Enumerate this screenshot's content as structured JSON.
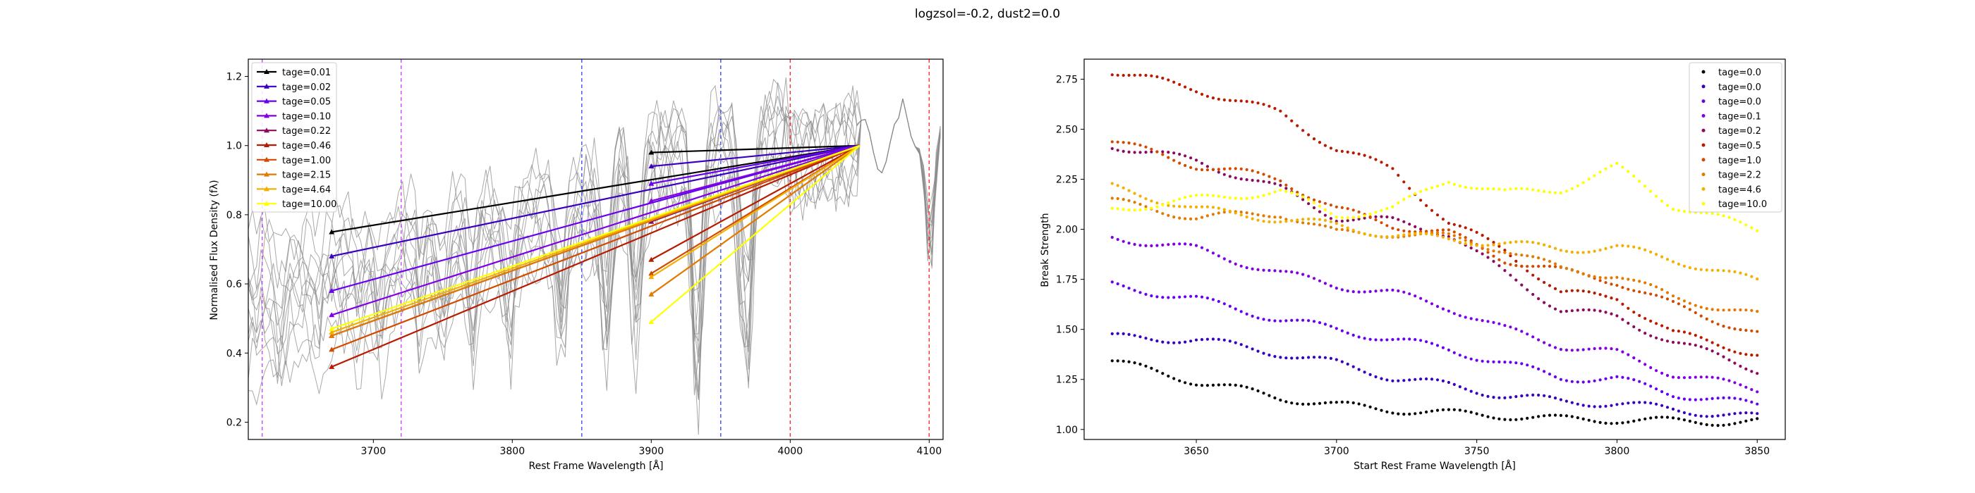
{
  "figure": {
    "suptitle": "logzsol=-0.2, dust2=0.0"
  },
  "colors": {
    "bg": "#ffffff",
    "axis": "#000000",
    "spectra": "#8c8c8c",
    "vline_blue": "#3b4cff",
    "vline_red": "#ff3030",
    "vline_violet": "#cc44ff",
    "series": [
      "#000000",
      "#3a00c0",
      "#6a00f0",
      "#8000e6",
      "#8b0a60",
      "#b81a00",
      "#d24a00",
      "#e27a00",
      "#f2b000",
      "#ffff00"
    ]
  },
  "chart_data": [
    {
      "type": "line",
      "title": "",
      "xlabel": "Rest Frame Wavelength [Å]",
      "ylabel": "Normalised Flux Density (fλ)",
      "xlim": [
        3610,
        4110
      ],
      "ylim": [
        0.15,
        1.25
      ],
      "xticks": [
        3700,
        3800,
        3900,
        4000,
        4100
      ],
      "yticks": [
        0.2,
        0.4,
        0.6,
        0.8,
        1.0,
        1.2
      ],
      "grid": false,
      "legend_position": "top-left",
      "vertical_lines": [
        {
          "x": 3620,
          "color": "violet"
        },
        {
          "x": 3720,
          "color": "violet"
        },
        {
          "x": 3850,
          "color": "blue"
        },
        {
          "x": 3950,
          "color": "blue"
        },
        {
          "x": 4000,
          "color": "red"
        },
        {
          "x": 4100,
          "color": "red"
        }
      ],
      "anchor": {
        "x": 4050,
        "y": 1.0
      },
      "series": [
        {
          "name": "tage=0.01",
          "x_left": 3670,
          "y_left": 0.75,
          "x_mid": 3900,
          "y_mid": 0.98
        },
        {
          "name": "tage=0.02",
          "x_left": 3670,
          "y_left": 0.68,
          "x_mid": 3900,
          "y_mid": 0.94
        },
        {
          "name": "tage=0.05",
          "x_left": 3670,
          "y_left": 0.58,
          "x_mid": 3900,
          "y_mid": 0.89
        },
        {
          "name": "tage=0.10",
          "x_left": 3670,
          "y_left": 0.51,
          "x_mid": 3900,
          "y_mid": 0.84
        },
        {
          "name": "tage=0.22",
          "x_left": 3670,
          "y_left": 0.45,
          "x_mid": 3900,
          "y_mid": 0.78
        },
        {
          "name": "tage=0.46",
          "x_left": 3670,
          "y_left": 0.36,
          "x_mid": 3900,
          "y_mid": 0.67
        },
        {
          "name": "tage=1.00",
          "x_left": 3670,
          "y_left": 0.41,
          "x_mid": 3900,
          "y_mid": 0.63
        },
        {
          "name": "tage=2.15",
          "x_left": 3670,
          "y_left": 0.45,
          "x_mid": 3900,
          "y_mid": 0.57
        },
        {
          "name": "tage=4.64",
          "x_left": 3670,
          "y_left": 0.46,
          "x_mid": 3900,
          "y_mid": 0.62
        },
        {
          "name": "tage=10.00",
          "x_left": 3670,
          "y_left": 0.47,
          "x_mid": 3900,
          "y_mid": 0.49
        }
      ]
    },
    {
      "type": "scatter",
      "title": "",
      "xlabel": "Start Rest Frame Wavelength [Å]",
      "ylabel": "Break Strength",
      "xlim": [
        3610,
        3860
      ],
      "ylim": [
        0.95,
        2.85
      ],
      "xticks": [
        3650,
        3700,
        3750,
        3800,
        3850
      ],
      "yticks": [
        1.0,
        1.25,
        1.5,
        1.75,
        2.0,
        2.25,
        2.5,
        2.75
      ],
      "grid": false,
      "legend_position": "top-right",
      "x_range_of_points": [
        3620,
        3850
      ],
      "series": [
        {
          "name": "tage=0.0",
          "x": [
            3620,
            3650,
            3680,
            3700,
            3720,
            3740,
            3760,
            3780,
            3800,
            3820,
            3850
          ],
          "y": [
            1.34,
            1.24,
            1.16,
            1.12,
            1.1,
            1.08,
            1.07,
            1.05,
            1.05,
            1.04,
            1.04
          ]
        },
        {
          "name": "tage=0.0",
          "x": [
            3620,
            3650,
            3680,
            3700,
            3720,
            3740,
            3760,
            3780,
            3800,
            3820,
            3850
          ],
          "y": [
            1.46,
            1.45,
            1.38,
            1.33,
            1.26,
            1.22,
            1.17,
            1.14,
            1.13,
            1.1,
            1.06
          ]
        },
        {
          "name": "tage=0.0",
          "x": [
            3620,
            3650,
            3680,
            3700,
            3720,
            3740,
            3760,
            3780,
            3800,
            3820,
            3850
          ],
          "y": [
            1.72,
            1.65,
            1.55,
            1.5,
            1.45,
            1.4,
            1.33,
            1.26,
            1.25,
            1.18,
            1.12
          ]
        },
        {
          "name": "tage=0.1",
          "x": [
            3620,
            3650,
            3680,
            3700,
            3720,
            3740,
            3760,
            3780,
            3800,
            3820,
            3850
          ],
          "y": [
            1.96,
            1.9,
            1.78,
            1.72,
            1.68,
            1.61,
            1.5,
            1.42,
            1.38,
            1.28,
            1.2
          ]
        },
        {
          "name": "tage=0.2",
          "x": [
            3620,
            3650,
            3680,
            3700,
            3720,
            3740,
            3760,
            3780,
            3800,
            3820,
            3850
          ],
          "y": [
            2.42,
            2.34,
            2.2,
            2.06,
            2.04,
            1.98,
            1.78,
            1.6,
            1.56,
            1.44,
            1.3
          ]
        },
        {
          "name": "tage=0.5",
          "x": [
            3620,
            3650,
            3680,
            3700,
            3720,
            3740,
            3760,
            3780,
            3800,
            3820,
            3850
          ],
          "y": [
            2.79,
            2.7,
            2.58,
            2.4,
            2.3,
            2.03,
            1.9,
            1.68,
            1.66,
            1.48,
            1.38
          ]
        },
        {
          "name": "tage=1.0",
          "x": [
            3620,
            3650,
            3680,
            3700,
            3720,
            3740,
            3760,
            3780,
            3800,
            3820,
            3850
          ],
          "y": [
            2.44,
            2.32,
            2.25,
            2.1,
            2.02,
            1.98,
            1.85,
            1.79,
            1.74,
            1.62,
            1.48
          ]
        },
        {
          "name": "tage=2.2",
          "x": [
            3620,
            3650,
            3680,
            3700,
            3720,
            3740,
            3760,
            3780,
            3800,
            3820,
            3850
          ],
          "y": [
            2.14,
            2.06,
            2.08,
            1.98,
            1.98,
            1.96,
            1.9,
            1.8,
            1.77,
            1.66,
            1.57
          ]
        },
        {
          "name": "tage=4.6",
          "x": [
            3620,
            3650,
            3680,
            3700,
            3720,
            3740,
            3760,
            3780,
            3800,
            3820,
            3850
          ],
          "y": [
            2.21,
            2.1,
            2.05,
            2.02,
            1.97,
            1.95,
            1.93,
            1.9,
            1.91,
            1.85,
            1.74
          ]
        },
        {
          "name": "tage=10.0",
          "x": [
            3620,
            3650,
            3680,
            3700,
            3720,
            3740,
            3760,
            3780,
            3800,
            3820,
            3850
          ],
          "y": [
            2.1,
            2.15,
            2.19,
            2.07,
            2.1,
            2.25,
            2.18,
            2.2,
            2.31,
            2.12,
            2.0
          ]
        }
      ]
    }
  ]
}
